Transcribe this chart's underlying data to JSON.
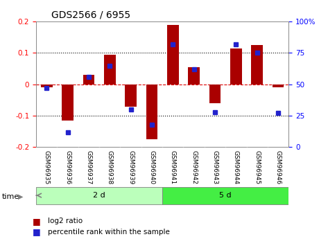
{
  "title": "GDS2566 / 6955",
  "samples": [
    "GSM96935",
    "GSM96936",
    "GSM96937",
    "GSM96938",
    "GSM96939",
    "GSM96940",
    "GSM96941",
    "GSM96942",
    "GSM96943",
    "GSM96944",
    "GSM96945",
    "GSM96946"
  ],
  "log2_ratio": [
    -0.01,
    -0.115,
    0.03,
    0.095,
    -0.07,
    -0.175,
    0.19,
    0.055,
    -0.06,
    0.115,
    0.125,
    -0.01
  ],
  "percentile_rank": [
    47,
    12,
    56,
    65,
    30,
    18,
    82,
    62,
    28,
    82,
    75,
    27
  ],
  "groups": [
    {
      "label": "2 d",
      "start": 0,
      "end": 6,
      "color": "#bbffbb"
    },
    {
      "label": "5 d",
      "start": 6,
      "end": 12,
      "color": "#44ee44"
    }
  ],
  "bar_color": "#aa0000",
  "dot_color": "#2222cc",
  "ylim": [
    -0.2,
    0.2
  ],
  "y2lim": [
    0,
    100
  ],
  "yticks": [
    -0.2,
    -0.1,
    0.0,
    0.1,
    0.2
  ],
  "ytick_labels": [
    "-0.2",
    "-0.1",
    "0",
    "0.1",
    "0.2"
  ],
  "y2ticks": [
    0,
    25,
    50,
    75,
    100
  ],
  "y2tick_labels": [
    "0",
    "25",
    "50",
    "75",
    "100%"
  ],
  "dotted_lines_black": [
    -0.1,
    0.1
  ],
  "zero_line_color": "#dd0000",
  "background_color": "#ffffff",
  "plot_bg_color": "#ffffff",
  "sample_bg_color": "#cccccc",
  "group_label_color": "#000000",
  "time_label": "time",
  "legend_red_label": "log2 ratio",
  "legend_blue_label": "percentile rank within the sample",
  "title_fontsize": 10,
  "tick_fontsize": 7.5,
  "label_fontsize": 8,
  "sample_fontsize": 6.5
}
